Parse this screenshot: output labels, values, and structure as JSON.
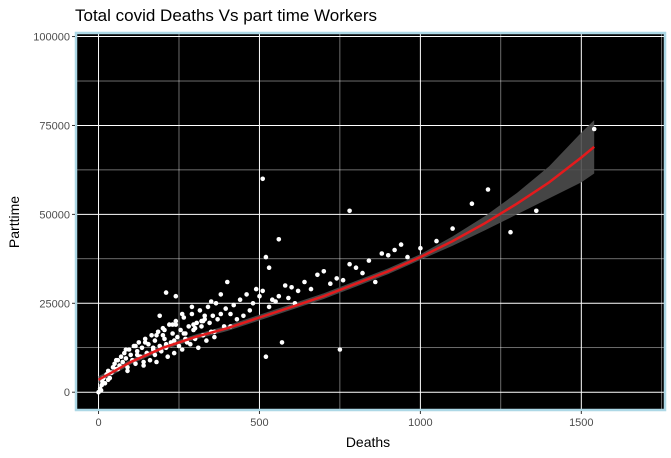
{
  "chart_data": {
    "type": "scatter",
    "title": "Total covid Deaths Vs part time Workers",
    "xlabel": "Deaths",
    "ylabel": "Parttime",
    "xlim": [
      -70,
      1760
    ],
    "ylim": [
      -5000,
      101000
    ],
    "x_ticks": [
      0,
      500,
      1000,
      1500
    ],
    "x_tick_labels": [
      "0",
      "500",
      "1000",
      "1500"
    ],
    "y_ticks": [
      0,
      25000,
      50000,
      75000,
      100000
    ],
    "y_tick_labels": [
      "0",
      "25000",
      "50000",
      "75000",
      "100000"
    ],
    "grid": true,
    "legend": "none",
    "colors": {
      "panel_background": "#000000",
      "panel_border": "#add8e6",
      "gridline": "#ffffff",
      "points": "#ffffff",
      "trend_line": "#e41a1c",
      "confidence_band": "#4d4d4d"
    },
    "series": [
      {
        "kind": "points",
        "x": [
          0,
          5,
          8,
          10,
          12,
          15,
          20,
          25,
          30,
          35,
          40,
          45,
          50,
          55,
          60,
          65,
          70,
          75,
          80,
          85,
          90,
          95,
          100,
          105,
          110,
          115,
          120,
          125,
          130,
          135,
          140,
          145,
          150,
          155,
          160,
          165,
          170,
          175,
          180,
          185,
          190,
          195,
          200,
          205,
          210,
          215,
          220,
          225,
          230,
          235,
          240,
          245,
          250,
          255,
          260,
          265,
          270,
          275,
          280,
          285,
          290,
          295,
          300,
          305,
          310,
          315,
          320,
          325,
          330,
          335,
          340,
          345,
          350,
          355,
          360,
          365,
          370,
          380,
          390,
          395,
          400,
          410,
          420,
          430,
          440,
          450,
          460,
          470,
          480,
          490,
          500,
          510,
          520,
          530,
          540,
          550,
          560,
          570,
          580,
          590,
          600,
          610,
          620,
          640,
          660,
          680,
          700,
          720,
          740,
          760,
          780,
          800,
          820,
          840,
          860,
          880,
          900,
          920,
          940,
          960,
          30,
          60,
          90,
          120,
          150,
          180,
          210,
          240,
          270,
          300,
          330,
          360,
          55,
          85,
          115,
          145,
          175,
          205,
          235,
          265,
          295,
          325,
          140,
          170,
          200,
          230,
          260,
          290,
          320,
          350,
          380,
          410,
          190,
          210,
          240,
          520,
          750,
          510,
          530,
          560,
          780,
          1160,
          1210,
          1280,
          1360,
          1540,
          1000,
          1050,
          1100
        ],
        "y": [
          0,
          1000,
          500,
          2000,
          3000,
          4000,
          2500,
          5000,
          6000,
          4000,
          5500,
          7000,
          8000,
          6500,
          9000,
          7500,
          10000,
          8500,
          11000,
          9500,
          6000,
          12000,
          10500,
          9000,
          13000,
          8000,
          11500,
          14000,
          10000,
          12500,
          7500,
          15000,
          11000,
          13500,
          9000,
          16000,
          12000,
          14500,
          8500,
          17000,
          13000,
          11500,
          18000,
          15000,
          12500,
          10000,
          19000,
          14000,
          16500,
          11000,
          20000,
          15500,
          13000,
          17500,
          12000,
          21000,
          16500,
          14000,
          18500,
          13500,
          22000,
          17500,
          15000,
          19500,
          12500,
          23000,
          18500,
          16000,
          20500,
          14500,
          24000,
          19500,
          17000,
          21500,
          15500,
          25000,
          20500,
          22000,
          18500,
          23500,
          31000,
          22000,
          24500,
          20500,
          26000,
          21500,
          27500,
          23000,
          25000,
          29000,
          27000,
          28500,
          10000,
          24000,
          26000,
          25500,
          27000,
          14000,
          30000,
          26500,
          29500,
          25000,
          28500,
          31000,
          29000,
          33000,
          34000,
          30500,
          32000,
          31500,
          36000,
          35000,
          33500,
          37000,
          31000,
          39000,
          38500,
          40000,
          41500,
          38000,
          3500,
          6500,
          7000,
          10500,
          11000,
          16000,
          13500,
          19000,
          15000,
          18000,
          21500,
          17000,
          9000,
          12000,
          13000,
          14000,
          10500,
          17500,
          14500,
          16500,
          19000,
          20000,
          8500,
          12500,
          16000,
          19000,
          22000,
          24000,
          20000,
          25500,
          27500,
          18500,
          21500,
          28000,
          27000,
          38000,
          12000,
          60000,
          35000,
          43000,
          51000,
          53000,
          57000,
          45000,
          51000,
          74000,
          40500,
          42500,
          46000
        ]
      },
      {
        "kind": "smooth",
        "x": [
          0,
          100,
          200,
          300,
          400,
          500,
          600,
          700,
          800,
          900,
          1000,
          1100,
          1200,
          1300,
          1400,
          1500,
          1540
        ],
        "y": [
          3500,
          8500,
          12500,
          15500,
          18000,
          21000,
          24000,
          27000,
          30500,
          34000,
          38000,
          42500,
          47500,
          53000,
          59000,
          66000,
          69000
        ],
        "ci_low": [
          2500,
          7800,
          11800,
          14800,
          17200,
          20200,
          23200,
          26200,
          29700,
          33200,
          37200,
          41200,
          45500,
          50000,
          54500,
          59000,
          61500
        ],
        "ci_high": [
          4500,
          9200,
          13200,
          16200,
          18800,
          21800,
          24800,
          27800,
          31300,
          34800,
          38800,
          43800,
          49500,
          56000,
          63500,
          73000,
          76500
        ]
      }
    ]
  }
}
